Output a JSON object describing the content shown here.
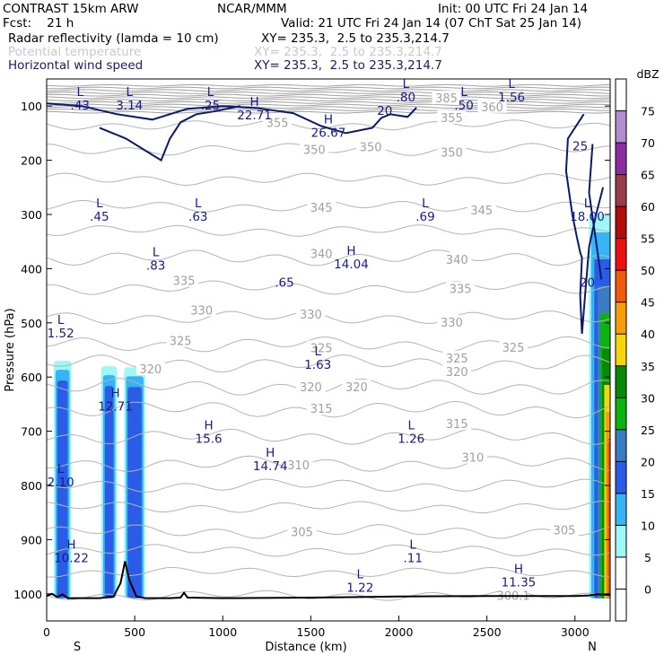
{
  "header": {
    "model": "CONTRAST 15km ARW",
    "org": "NCAR/MMM",
    "init": "Init: 00 UTC Fri 24 Jan 14",
    "fcst": "Fcst:    21 h",
    "valid": "Valid: 21 UTC Fri 24 Jan 14 (07 ChT Sat 25 Jan 14)",
    "fields": [
      {
        "label": "Radar reflectivity (lamda = 10 cm)",
        "xy": "XY= 235.3,  2.5 to 235.3,214.7",
        "color": "#000000"
      },
      {
        "label": "Potential temperature",
        "xy": "XY= 235.3,  2.5 to 235.3,214.7",
        "color": "#c8c8c8"
      },
      {
        "label": "Horizontal wind speed",
        "xy": "XY= 235.3,  2.5 to 235.3,214.7",
        "color": "#1a1a6e"
      }
    ]
  },
  "chart_data": {
    "type": "contour",
    "xlabel": "Distance (km)",
    "ylabel": "Pressure (hPa)",
    "xlim": [
      0,
      3200
    ],
    "ylim": [
      1050,
      50
    ],
    "x_ticks": [
      0,
      500,
      1000,
      1500,
      2000,
      2500,
      3000
    ],
    "y_ticks": [
      100,
      200,
      300,
      400,
      500,
      600,
      700,
      800,
      900,
      1000
    ],
    "x_end_labels": {
      "left": "S",
      "right": "N"
    },
    "colorbar": {
      "unit": "dBZ",
      "levels": [
        0,
        5,
        10,
        15,
        20,
        25,
        30,
        35,
        40,
        45,
        50,
        55,
        60,
        65,
        70,
        75
      ],
      "colors": [
        "#ffffff",
        "#ffffff",
        "#9ef6f6",
        "#36b4f5",
        "#2a5ce6",
        "#3a7cc4",
        "#0db30d",
        "#078a07",
        "#f4d60a",
        "#f59d0a",
        "#f05a0a",
        "#ec1010",
        "#b40c0c",
        "#9a3c4a",
        "#8a2ea0",
        "#b48cd0",
        "#ffffff"
      ]
    },
    "theta_contours": [
      {
        "label": "300.1",
        "x": 2650,
        "p": 1003
      },
      {
        "label": "305",
        "x": 1450,
        "p": 885
      },
      {
        "label": "305",
        "x": 2940,
        "p": 882
      },
      {
        "label": "310",
        "x": 1430,
        "p": 762
      },
      {
        "label": "310",
        "x": 2420,
        "p": 748
      },
      {
        "label": "315",
        "x": 1560,
        "p": 658
      },
      {
        "label": "315",
        "x": 2330,
        "p": 686
      },
      {
        "label": "320",
        "x": 1500,
        "p": 618
      },
      {
        "label": "320",
        "x": 1760,
        "p": 618
      },
      {
        "label": "320",
        "x": 2330,
        "p": 590
      },
      {
        "label": "320",
        "x": 590,
        "p": 585
      },
      {
        "label": "325",
        "x": 760,
        "p": 533
      },
      {
        "label": "325",
        "x": 1560,
        "p": 546
      },
      {
        "label": "325",
        "x": 2330,
        "p": 565
      },
      {
        "label": "325",
        "x": 2650,
        "p": 545
      },
      {
        "label": "330",
        "x": 880,
        "p": 476
      },
      {
        "label": "330",
        "x": 1500,
        "p": 484
      },
      {
        "label": "330",
        "x": 2300,
        "p": 499
      },
      {
        "label": "335",
        "x": 780,
        "p": 422
      },
      {
        "label": "335",
        "x": 2350,
        "p": 437
      },
      {
        "label": "340",
        "x": 1560,
        "p": 372
      },
      {
        "label": "340",
        "x": 2330,
        "p": 383
      },
      {
        "label": "345",
        "x": 1560,
        "p": 287
      },
      {
        "label": "345",
        "x": 2470,
        "p": 292
      },
      {
        "label": "350",
        "x": 1520,
        "p": 180
      },
      {
        "label": "350",
        "x": 1840,
        "p": 175
      },
      {
        "label": "350",
        "x": 2300,
        "p": 185
      },
      {
        "label": "355",
        "x": 1310,
        "p": 130
      },
      {
        "label": "355",
        "x": 2300,
        "p": 121
      },
      {
        "label": "360",
        "x": 2530,
        "p": 101
      },
      {
        "label": "385",
        "x": 2270,
        "p": 85
      }
    ],
    "wind_labels": [
      {
        "text": "L\n.43",
        "x": 190,
        "p": 85
      },
      {
        "text": "L\n3.14",
        "x": 470,
        "p": 85
      },
      {
        "text": "L\n.25",
        "x": 930,
        "p": 85
      },
      {
        "text": "H\n22.71",
        "x": 1180,
        "p": 103
      },
      {
        "text": "H\n26.67",
        "x": 1600,
        "p": 135
      },
      {
        "text": "20",
        "x": 1920,
        "p": 108
      },
      {
        "text": "L\n.80",
        "x": 2040,
        "p": 70
      },
      {
        "text": "L\n.50",
        "x": 2370,
        "p": 85
      },
      {
        "text": "L\n1.56",
        "x": 2640,
        "p": 70
      },
      {
        "text": "25",
        "x": 3030,
        "p": 173
      },
      {
        "text": "L\n.45",
        "x": 300,
        "p": 290
      },
      {
        "text": "L\n.63",
        "x": 860,
        "p": 290
      },
      {
        "text": "L\n.69",
        "x": 2150,
        "p": 290
      },
      {
        "text": "L\n18.00",
        "x": 3070,
        "p": 290
      },
      {
        "text": "L\n.83",
        "x": 620,
        "p": 380
      },
      {
        "text": "H\n14.04",
        "x": 1730,
        "p": 378
      },
      {
        "text": ".65",
        "x": 1350,
        "p": 425
      },
      {
        "text": "20",
        "x": 3070,
        "p": 425
      },
      {
        "text": "L\n1.52",
        "x": 80,
        "p": 505
      },
      {
        "text": "L\n1.63",
        "x": 1540,
        "p": 563
      },
      {
        "text": "H\n12.71",
        "x": 390,
        "p": 640
      },
      {
        "text": "H\n15.6",
        "x": 920,
        "p": 700
      },
      {
        "text": "L\n1.26",
        "x": 2070,
        "p": 700
      },
      {
        "text": "H\n14.74",
        "x": 1270,
        "p": 750
      },
      {
        "text": "L\n2.10",
        "x": 80,
        "p": 780
      },
      {
        "text": "H\n10.22",
        "x": 140,
        "p": 920
      },
      {
        "text": "L\n.11",
        "x": 2080,
        "p": 920
      },
      {
        "text": "L\n1.22",
        "x": 1780,
        "p": 975
      },
      {
        "text": "H\n11.35",
        "x": 2680,
        "p": 965
      }
    ],
    "reflectivity_columns": [
      {
        "x0": 40,
        "x1": 140,
        "ptop": 570,
        "dbz": 15
      },
      {
        "x0": 310,
        "x1": 400,
        "ptop": 580,
        "dbz": 15
      },
      {
        "x0": 440,
        "x1": 560,
        "ptop": 582,
        "dbz": 15
      },
      {
        "x0": 3080,
        "x1": 3200,
        "ptop": 300,
        "dbz": 50
      }
    ],
    "terrain": {
      "x": [
        0,
        30,
        60,
        90,
        120,
        200,
        300,
        380,
        420,
        445,
        470,
        510,
        560,
        700,
        760,
        780,
        800,
        1000,
        1500,
        2000,
        2500,
        3000,
        3080,
        3120,
        3200
      ],
      "p": [
        1004,
        1000,
        1006,
        1001,
        1008,
        1008,
        1008,
        1005,
        980,
        940,
        975,
        1005,
        1008,
        1008,
        1007,
        998,
        1007,
        1008,
        1007,
        1005,
        1004,
        1004,
        1003,
        1001,
        1002
      ]
    }
  }
}
